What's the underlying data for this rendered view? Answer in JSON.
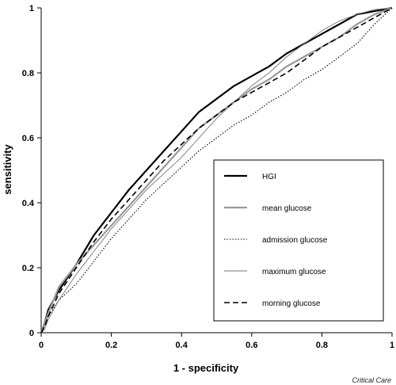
{
  "chart_data": {
    "type": "line",
    "title": "",
    "xlabel": "1 - specificity",
    "ylabel": "sensitivity",
    "xlim": [
      0,
      1
    ],
    "ylim": [
      0,
      1
    ],
    "x_ticks": [
      "0",
      "0.2",
      "0.4",
      "0.6",
      "0.8",
      "1"
    ],
    "y_ticks": [
      "0",
      "0.2",
      "0.4",
      "0.6",
      "0.8",
      "1"
    ],
    "grid": false,
    "legend_position": "bottom-right",
    "series": [
      {
        "name": "HGI",
        "color": "#000000",
        "style": "solid-thick",
        "points": [
          [
            0,
            0
          ],
          [
            0.01,
            0.03
          ],
          [
            0.02,
            0.07
          ],
          [
            0.05,
            0.13
          ],
          [
            0.1,
            0.21
          ],
          [
            0.15,
            0.3
          ],
          [
            0.2,
            0.37
          ],
          [
            0.25,
            0.44
          ],
          [
            0.3,
            0.5
          ],
          [
            0.35,
            0.56
          ],
          [
            0.4,
            0.62
          ],
          [
            0.45,
            0.68
          ],
          [
            0.5,
            0.72
          ],
          [
            0.55,
            0.76
          ],
          [
            0.6,
            0.79
          ],
          [
            0.65,
            0.82
          ],
          [
            0.7,
            0.86
          ],
          [
            0.75,
            0.89
          ],
          [
            0.8,
            0.92
          ],
          [
            0.85,
            0.95
          ],
          [
            0.9,
            0.98
          ],
          [
            0.95,
            0.99
          ],
          [
            1,
            1
          ]
        ]
      },
      {
        "name": "mean glucose",
        "color": "#999999",
        "style": "solid-thick",
        "points": [
          [
            0,
            0
          ],
          [
            0.01,
            0.03
          ],
          [
            0.02,
            0.06
          ],
          [
            0.05,
            0.14
          ],
          [
            0.1,
            0.21
          ],
          [
            0.15,
            0.27
          ],
          [
            0.2,
            0.33
          ],
          [
            0.25,
            0.39
          ],
          [
            0.3,
            0.45
          ],
          [
            0.35,
            0.51
          ],
          [
            0.4,
            0.57
          ],
          [
            0.45,
            0.63
          ],
          [
            0.5,
            0.67
          ],
          [
            0.55,
            0.71
          ],
          [
            0.6,
            0.75
          ],
          [
            0.65,
            0.78
          ],
          [
            0.7,
            0.82
          ],
          [
            0.75,
            0.85
          ],
          [
            0.8,
            0.88
          ],
          [
            0.85,
            0.91
          ],
          [
            0.9,
            0.95
          ],
          [
            0.95,
            0.98
          ],
          [
            1,
            1
          ]
        ]
      },
      {
        "name": "admission glucose",
        "color": "#000000",
        "style": "dotted",
        "points": [
          [
            0,
            0
          ],
          [
            0.01,
            0.02
          ],
          [
            0.02,
            0.05
          ],
          [
            0.05,
            0.1
          ],
          [
            0.1,
            0.15
          ],
          [
            0.15,
            0.22
          ],
          [
            0.2,
            0.29
          ],
          [
            0.25,
            0.35
          ],
          [
            0.3,
            0.41
          ],
          [
            0.35,
            0.46
          ],
          [
            0.4,
            0.51
          ],
          [
            0.45,
            0.56
          ],
          [
            0.5,
            0.6
          ],
          [
            0.55,
            0.64
          ],
          [
            0.6,
            0.67
          ],
          [
            0.65,
            0.71
          ],
          [
            0.7,
            0.74
          ],
          [
            0.75,
            0.78
          ],
          [
            0.8,
            0.81
          ],
          [
            0.85,
            0.85
          ],
          [
            0.9,
            0.89
          ],
          [
            0.95,
            0.95
          ],
          [
            1,
            1
          ]
        ]
      },
      {
        "name": "maximum glucose",
        "color": "#777777",
        "style": "solid-thin",
        "points": [
          [
            0,
            0
          ],
          [
            0.01,
            0.01
          ],
          [
            0.02,
            0.04
          ],
          [
            0.05,
            0.1
          ],
          [
            0.1,
            0.18
          ],
          [
            0.15,
            0.25
          ],
          [
            0.2,
            0.32
          ],
          [
            0.25,
            0.38
          ],
          [
            0.3,
            0.44
          ],
          [
            0.35,
            0.49
          ],
          [
            0.4,
            0.54
          ],
          [
            0.45,
            0.6
          ],
          [
            0.5,
            0.66
          ],
          [
            0.55,
            0.71
          ],
          [
            0.6,
            0.76
          ],
          [
            0.65,
            0.8
          ],
          [
            0.7,
            0.85
          ],
          [
            0.75,
            0.89
          ],
          [
            0.8,
            0.93
          ],
          [
            0.85,
            0.96
          ],
          [
            0.9,
            0.98
          ],
          [
            0.95,
            0.995
          ],
          [
            1,
            1
          ]
        ]
      },
      {
        "name": "morning glucose",
        "color": "#000000",
        "style": "dashed",
        "points": [
          [
            0,
            0
          ],
          [
            0.01,
            0.02
          ],
          [
            0.02,
            0.05
          ],
          [
            0.05,
            0.12
          ],
          [
            0.1,
            0.2
          ],
          [
            0.15,
            0.28
          ],
          [
            0.2,
            0.35
          ],
          [
            0.25,
            0.41
          ],
          [
            0.3,
            0.47
          ],
          [
            0.35,
            0.53
          ],
          [
            0.4,
            0.58
          ],
          [
            0.45,
            0.63
          ],
          [
            0.5,
            0.67
          ],
          [
            0.55,
            0.71
          ],
          [
            0.6,
            0.74
          ],
          [
            0.65,
            0.77
          ],
          [
            0.7,
            0.8
          ],
          [
            0.75,
            0.84
          ],
          [
            0.8,
            0.88
          ],
          [
            0.85,
            0.91
          ],
          [
            0.9,
            0.94
          ],
          [
            0.95,
            0.97
          ],
          [
            1,
            1
          ]
        ]
      }
    ]
  },
  "source_label": "Critical Care"
}
